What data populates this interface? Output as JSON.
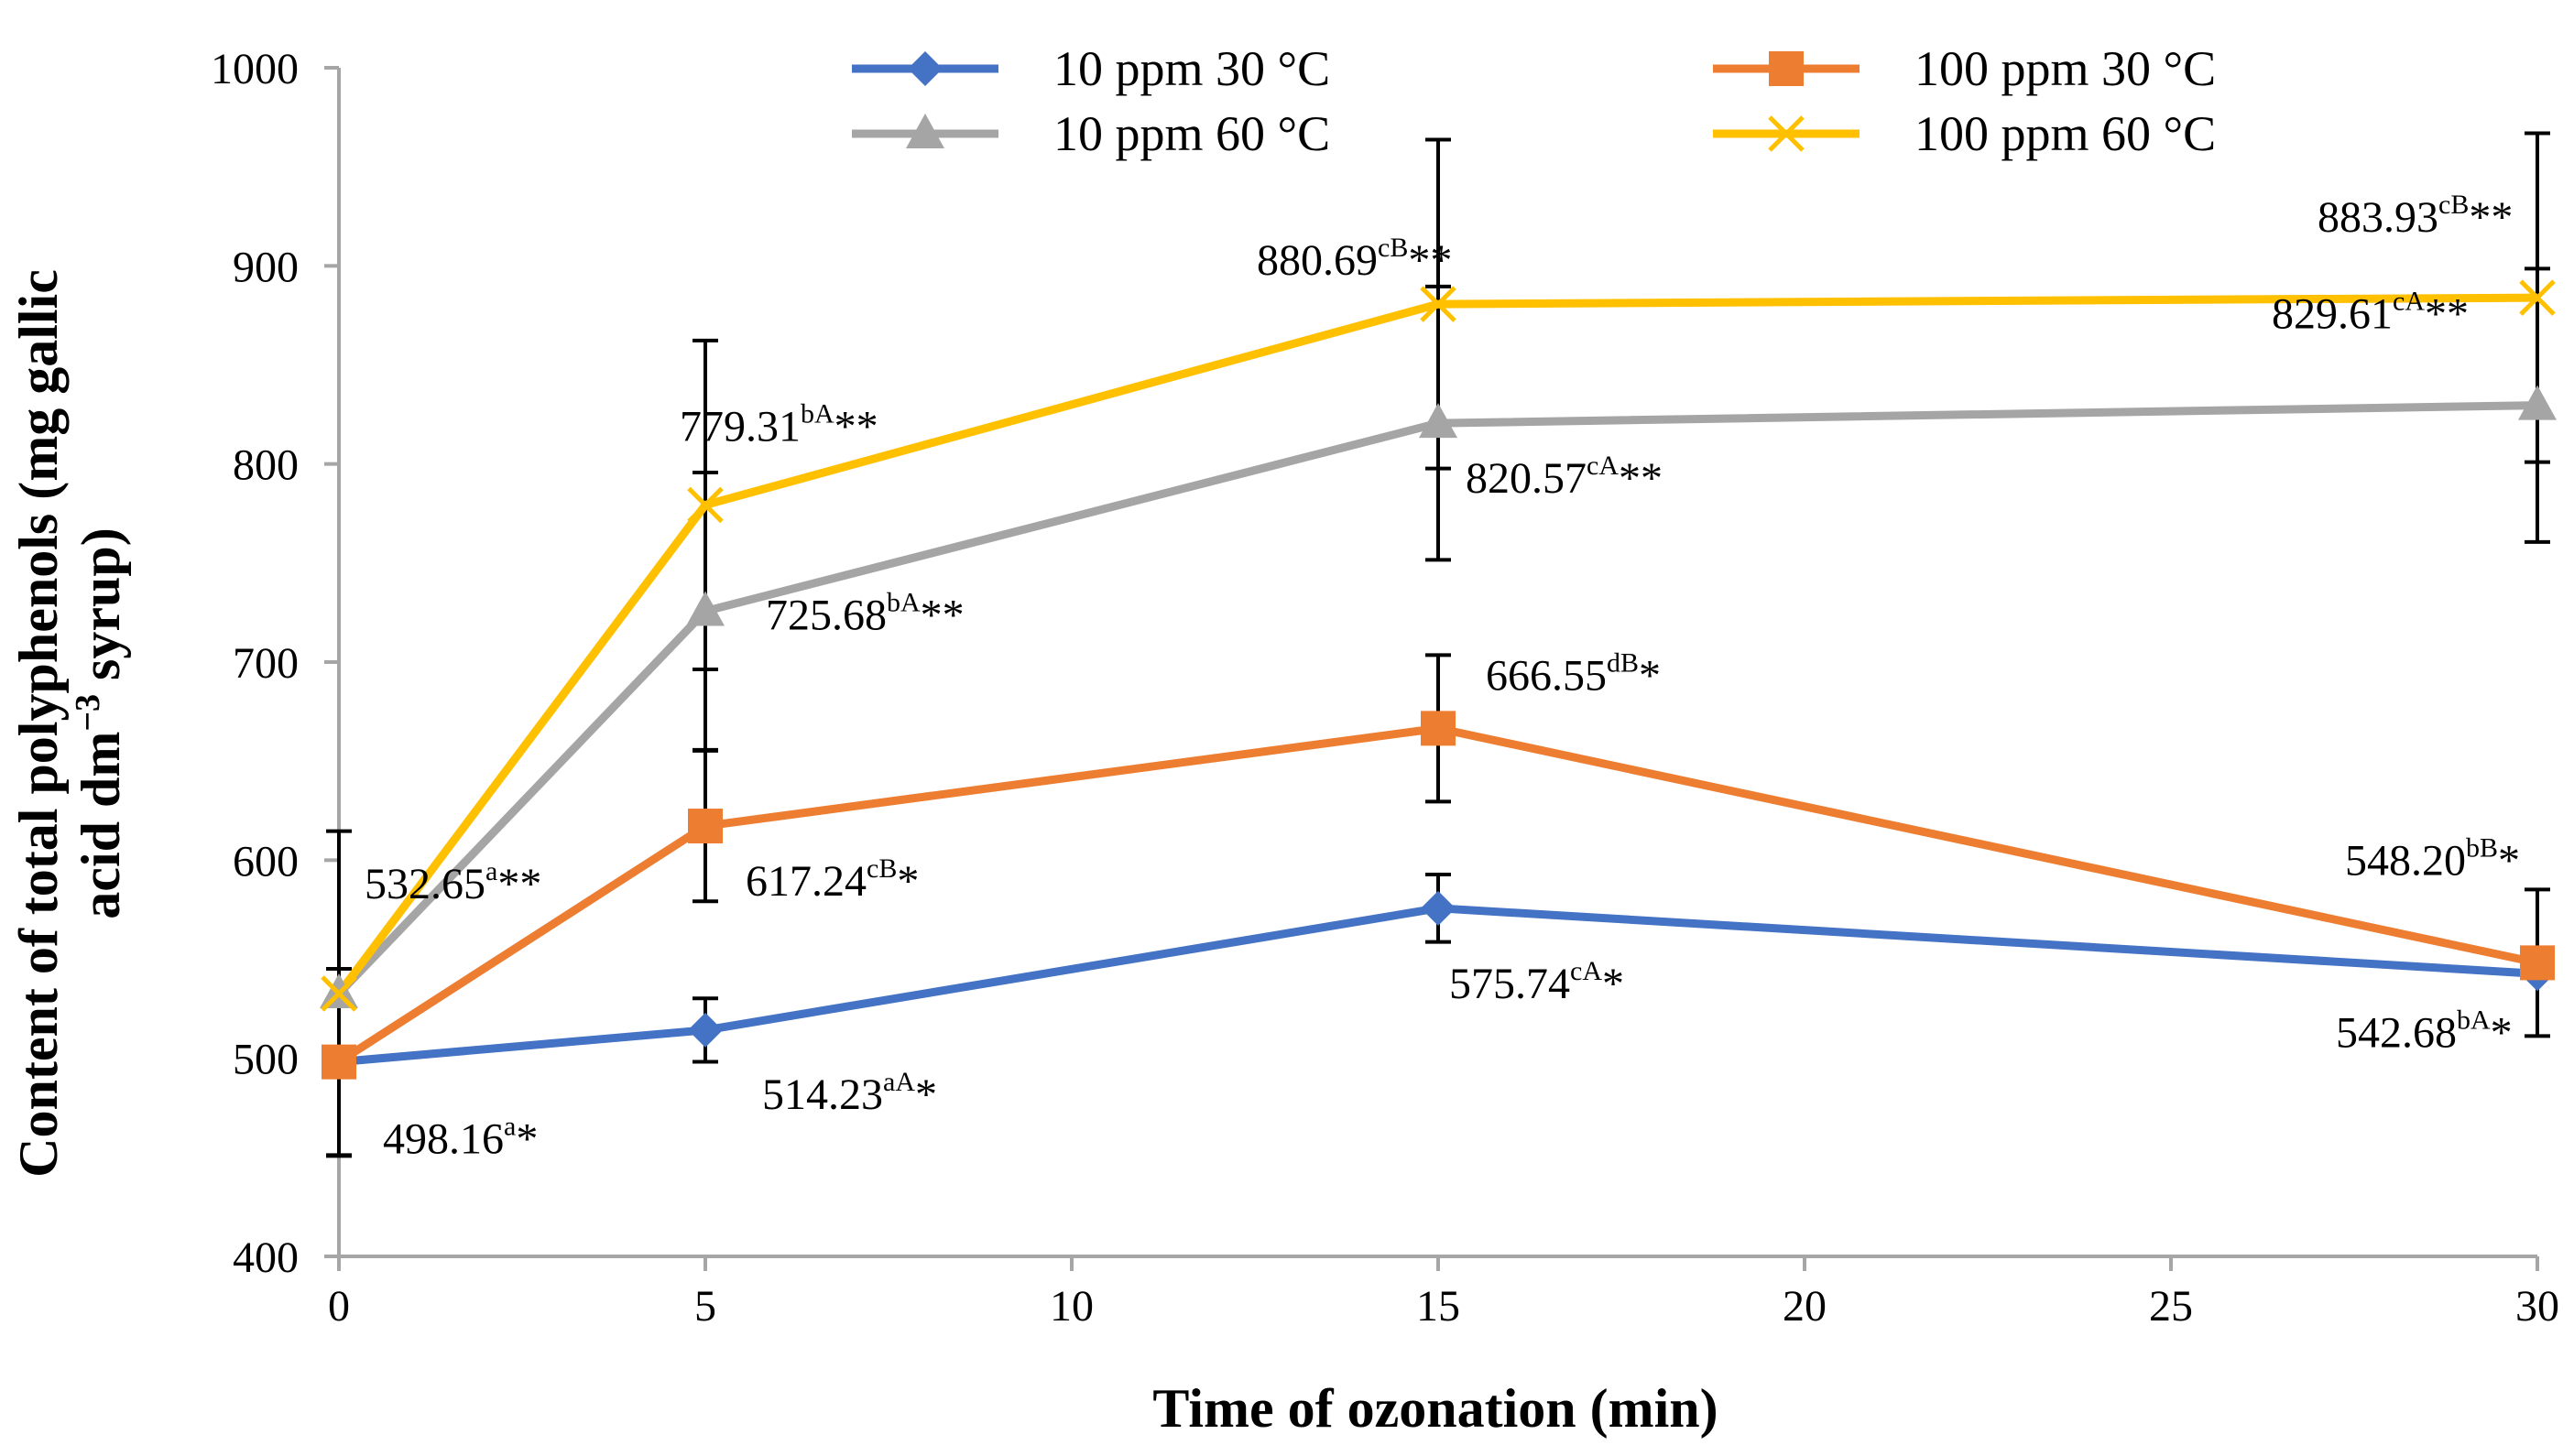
{
  "chart_data": {
    "type": "line",
    "title": "",
    "xlabel": "Time of ozonation (min)",
    "ylabel_line1": "Content of total polyphenols (mg gallic",
    "ylabel_line2_prefix": "acid dm",
    "ylabel_line2_sup": "−3",
    "ylabel_line2_suffix": " syrup)",
    "x": [
      0,
      5,
      15,
      30
    ],
    "xlim": [
      0,
      30
    ],
    "ylim": [
      400,
      1000
    ],
    "xticks": [
      "0",
      "5",
      "10",
      "15",
      "20",
      "25",
      "30"
    ],
    "yticks": [
      "400",
      "500",
      "600",
      "700",
      "800",
      "900",
      "1000"
    ],
    "legend_position": "top",
    "series": [
      {
        "name": "10 ppm 30 °C",
        "color": "#4472C4",
        "marker": "diamond",
        "values": [
          498.16,
          514.23,
          575.74,
          542.68
        ],
        "errors": [
          47,
          16,
          17,
          0
        ],
        "labels": [
          {
            "value": "498.16",
            "sup": "a",
            "stars": "*"
          },
          {
            "value": "514.23",
            "sup": "aA",
            "stars": "*"
          },
          {
            "value": "575.74",
            "sup": "cA",
            "stars": "*"
          },
          {
            "value": "542.68",
            "sup": "bA",
            "stars": "*"
          }
        ]
      },
      {
        "name": "100 ppm 30 °C",
        "color": "#ED7D31",
        "marker": "square",
        "values": [
          498.16,
          617.24,
          666.55,
          548.2
        ],
        "errors": [
          0,
          38,
          37,
          37
        ],
        "labels": [
          null,
          {
            "value": "617.24",
            "sup": "cB",
            "stars": "*"
          },
          {
            "value": "666.55",
            "sup": "dB",
            "stars": "*"
          },
          {
            "value": "548.20",
            "sup": "bB",
            "stars": "*"
          }
        ]
      },
      {
        "name": "10 ppm 60 °C",
        "color": "#A5A5A5",
        "marker": "triangle",
        "values": [
          532.65,
          725.68,
          820.57,
          829.61
        ],
        "errors": [
          82,
          70,
          69,
          69
        ],
        "labels": [
          {
            "value": "532.65",
            "sup": "a",
            "stars": "**"
          },
          {
            "value": "725.68",
            "sup": "bA",
            "stars": "**"
          },
          {
            "value": "820.57",
            "sup": "cA",
            "stars": "**"
          },
          {
            "value": "829.61",
            "sup": "cA",
            "stars": "**"
          }
        ]
      },
      {
        "name": "100 ppm 60 °C",
        "color": "#FFC000",
        "marker": "x",
        "values": [
          532.65,
          779.31,
          880.69,
          883.93
        ],
        "errors": [
          0,
          83,
          83,
          83
        ],
        "labels": [
          null,
          {
            "value": "779.31",
            "sup": "bA",
            "stars": "**"
          },
          {
            "value": "880.69",
            "sup": "cB",
            "stars": "**"
          },
          {
            "value": "883.93",
            "sup": "cB",
            "stars": "**"
          }
        ]
      }
    ]
  }
}
